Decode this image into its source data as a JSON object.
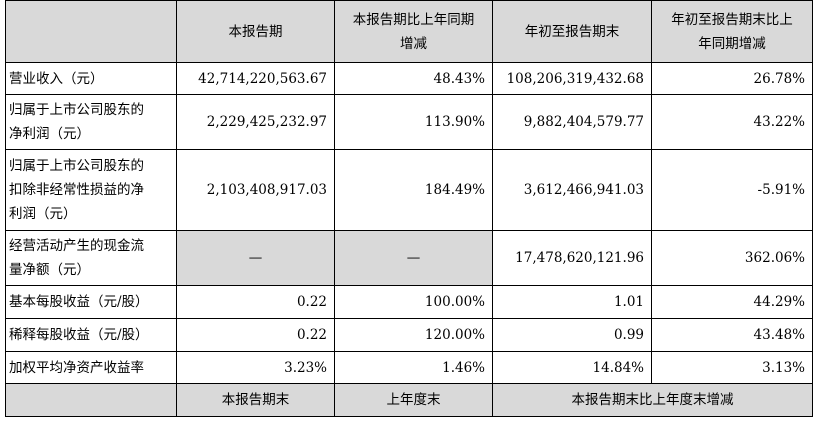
{
  "header": {
    "col_current": "本报告期",
    "col_current_yoy_line1": "本报告期比上年同期",
    "col_current_yoy_line2": "增减",
    "col_ytd": "年初至报告期末",
    "col_ytd_yoy_line1": "年初至报告期末比上",
    "col_ytd_yoy_line2": "年同期增减"
  },
  "rows": [
    {
      "label": "营业收入（元）",
      "current": "42,714,220,563.67",
      "current_yoy": "48.43%",
      "ytd": "108,206,319,432.68",
      "ytd_yoy": "26.78%"
    },
    {
      "label_line1": "归属于上市公司股东的",
      "label_line2": "净利润（元）",
      "current": "2,229,425,232.97",
      "current_yoy": "113.90%",
      "ytd": "9,882,404,579.77",
      "ytd_yoy": "43.22%"
    },
    {
      "label_line1": "归属于上市公司股东的",
      "label_line2": "扣除非经常性损益的净",
      "label_line3": "利润（元）",
      "current": "2,103,408,917.03",
      "current_yoy": "184.49%",
      "ytd": "3,612,466,941.03",
      "ytd_yoy": "-5.91%"
    },
    {
      "label_line1": "经营活动产生的现金流",
      "label_line2": "量净额（元）",
      "current": "—",
      "current_yoy": "—",
      "ytd": "17,478,620,121.96",
      "ytd_yoy": "362.06%"
    },
    {
      "label": "基本每股收益（元/股）",
      "current": "0.22",
      "current_yoy": "100.00%",
      "ytd": "1.01",
      "ytd_yoy": "44.29%"
    },
    {
      "label": "稀释每股收益（元/股）",
      "current": "0.22",
      "current_yoy": "120.00%",
      "ytd": "0.99",
      "ytd_yoy": "43.48%"
    },
    {
      "label": "加权平均净资产收益率",
      "current": "3.23%",
      "current_yoy": "1.46%",
      "ytd": "14.84%",
      "ytd_yoy": "3.13%"
    }
  ],
  "footer": {
    "col_period_end": "本报告期末",
    "col_prior_year_end": "上年度末",
    "col_change": "本报告期末比上年度末增减"
  }
}
